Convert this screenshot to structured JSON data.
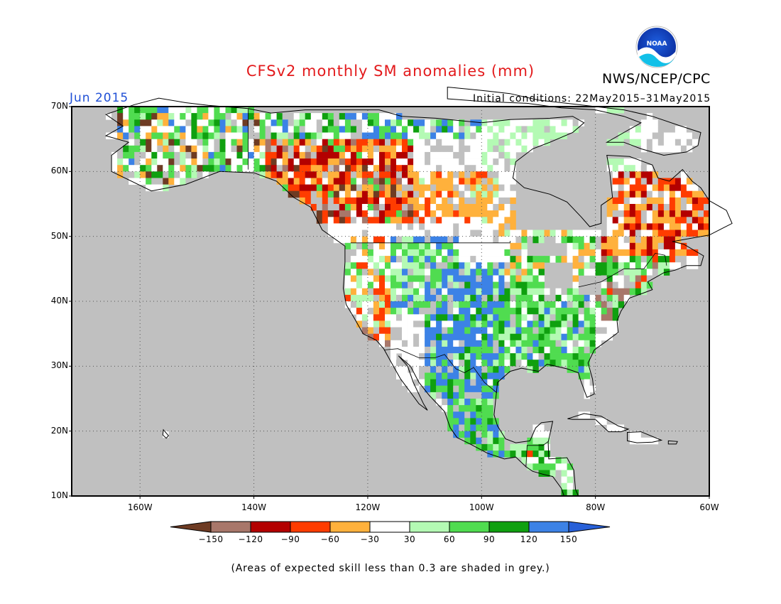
{
  "header": {
    "title": "CFSv2 monthly SM anomalies (mm)",
    "agency": "NWS/NCEP/CPC",
    "valid_month": "Jun 2015",
    "initial_conditions": "Initial conditions: 22May2015–31May2015",
    "logo_text": "NOAA"
  },
  "map": {
    "lon_range": [
      -172,
      -60
    ],
    "lat_range": [
      10,
      70
    ],
    "lat_labels": [
      "70N",
      "60N",
      "50N",
      "40N",
      "30N",
      "20N",
      "10N"
    ],
    "lat_values": [
      70,
      60,
      50,
      40,
      30,
      20,
      10
    ],
    "lon_labels": [
      "160W",
      "140W",
      "120W",
      "100W",
      "80W",
      "60W"
    ],
    "lon_values": [
      -160,
      -140,
      -120,
      -100,
      -80,
      -60
    ],
    "background_color": "#c0c0c0",
    "grid_style": "dotted",
    "icons": [
      "noaa-logo-icon"
    ]
  },
  "colorbar": {
    "labels": [
      "−150",
      "−120",
      "−90",
      "−60",
      "−30",
      "30",
      "60",
      "90",
      "120",
      "150"
    ],
    "colors": [
      "#6e3b23",
      "#a8776a",
      "#b30000",
      "#ff3c00",
      "#ffb13c",
      "#ffffff",
      "#b4fab4",
      "#50dc50",
      "#0fa00f",
      "#3c82e6",
      "#2860d8"
    ]
  },
  "footnote": "(Areas of expected skill less than 0.3 are shaded in grey.)"
}
